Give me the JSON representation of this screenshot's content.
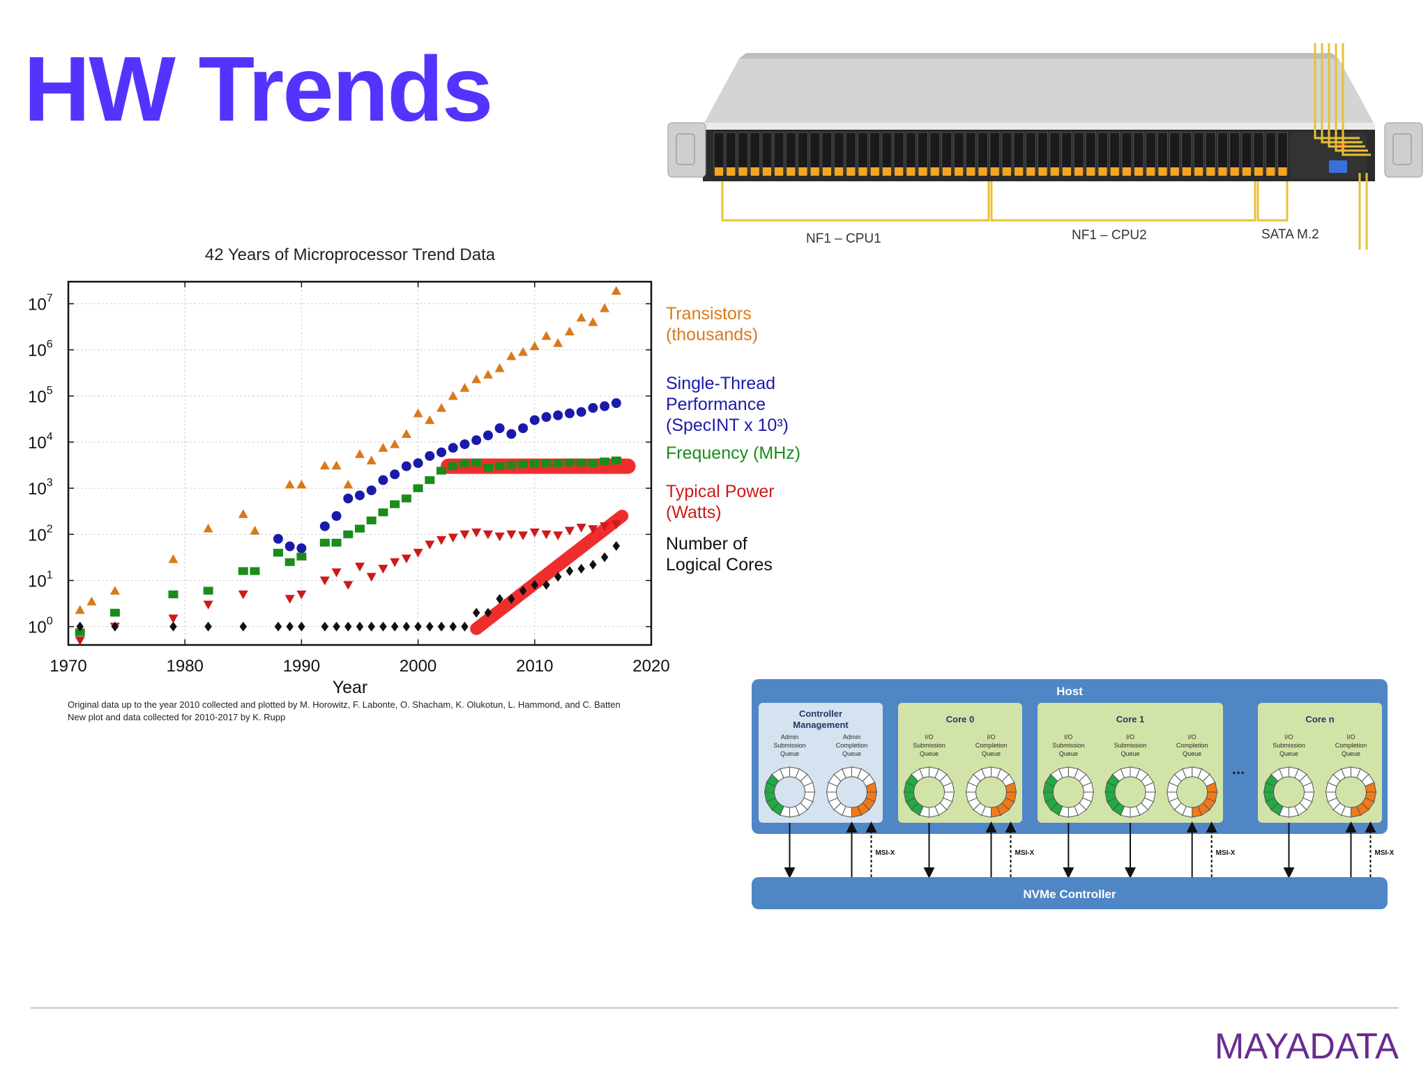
{
  "slide": {
    "title": "HW Trends",
    "title_color": "#5533ff"
  },
  "server": {
    "labels": [
      "NF1 – CPU1",
      "NF1 – CPU2",
      "SATA M.2"
    ],
    "bracket_color": "#e8c135",
    "drive_latch_color": "#f5a623"
  },
  "chart_data": {
    "type": "scatter",
    "title": "42 Years of Microprocessor Trend Data",
    "xlabel": "Year",
    "ylabel": "",
    "xlim": [
      1970,
      2020
    ],
    "ylim": [
      0.4,
      30000000
    ],
    "y_scale": "log",
    "grid": true,
    "x_ticks": [
      "1970",
      "1980",
      "1990",
      "2000",
      "2010",
      "2020"
    ],
    "y_ticks": [
      {
        "base": "10",
        "exp": "0"
      },
      {
        "base": "10",
        "exp": "1"
      },
      {
        "base": "10",
        "exp": "2"
      },
      {
        "base": "10",
        "exp": "3"
      },
      {
        "base": "10",
        "exp": "4"
      },
      {
        "base": "10",
        "exp": "5"
      },
      {
        "base": "10",
        "exp": "6"
      },
      {
        "base": "10",
        "exp": "7"
      }
    ],
    "legend": [
      {
        "lines": [
          "Transistors",
          "(thousands)"
        ],
        "color": "#d9791a"
      },
      {
        "lines": [
          "Single-Thread",
          "Performance",
          "(SpecINT x 10³)"
        ],
        "color": "#1a1aaa"
      },
      {
        "lines": [
          "Frequency (MHz)"
        ],
        "color": "#1a8c1a"
      },
      {
        "lines": [
          "Typical Power",
          "(Watts)"
        ],
        "color": "#cc1a1a"
      },
      {
        "lines": [
          "Number of",
          "Logical Cores"
        ],
        "color": "#111111"
      }
    ],
    "legend_placement": "right",
    "footnote": [
      "Original data up to the year 2010 collected and plotted by M. Horowitz, F. Labonte, O. Shacham, K. Olukotun, L. Hammond, and C. Batten",
      "New plot and data collected for 2010-2017 by K. Rupp"
    ],
    "series": [
      {
        "name": "Transistors (thousands)",
        "marker": "triangle-up",
        "color": "#d9791a",
        "points": [
          [
            1971,
            2.3
          ],
          [
            1972,
            3.5
          ],
          [
            1974,
            6
          ],
          [
            1979,
            29
          ],
          [
            1982,
            134
          ],
          [
            1985,
            275
          ],
          [
            1986,
            120
          ],
          [
            1989,
            1200
          ],
          [
            1990,
            1200
          ],
          [
            1992,
            3100
          ],
          [
            1993,
            3100
          ],
          [
            1994,
            1200
          ],
          [
            1995,
            5500
          ],
          [
            1996,
            4000
          ],
          [
            1997,
            7500
          ],
          [
            1998,
            9000
          ],
          [
            1999,
            15000
          ],
          [
            2000,
            42000
          ],
          [
            2001,
            30000
          ],
          [
            2002,
            55000
          ],
          [
            2003,
            100000
          ],
          [
            2004,
            150000
          ],
          [
            2005,
            230000
          ],
          [
            2006,
            290000
          ],
          [
            2007,
            400000
          ],
          [
            2008,
            730000
          ],
          [
            2009,
            900000
          ],
          [
            2010,
            1200000
          ],
          [
            2011,
            2000000
          ],
          [
            2012,
            1400000
          ],
          [
            2013,
            2500000
          ],
          [
            2014,
            5000000
          ],
          [
            2015,
            4000000
          ],
          [
            2016,
            8000000
          ],
          [
            2017,
            19000000
          ]
        ]
      },
      {
        "name": "Single-Thread Performance (SpecINT x 10³)",
        "marker": "circle",
        "color": "#1a1aaa",
        "points": [
          [
            1988,
            80
          ],
          [
            1989,
            55
          ],
          [
            1990,
            50
          ],
          [
            1992,
            150
          ],
          [
            1993,
            250
          ],
          [
            1994,
            600
          ],
          [
            1995,
            700
          ],
          [
            1996,
            900
          ],
          [
            1997,
            1500
          ],
          [
            1998,
            2000
          ],
          [
            1999,
            3000
          ],
          [
            2000,
            3500
          ],
          [
            2001,
            5000
          ],
          [
            2002,
            6000
          ],
          [
            2003,
            7500
          ],
          [
            2004,
            9000
          ],
          [
            2005,
            11000
          ],
          [
            2006,
            14000
          ],
          [
            2007,
            20000
          ],
          [
            2008,
            15000
          ],
          [
            2009,
            20000
          ],
          [
            2010,
            30000
          ],
          [
            2011,
            35000
          ],
          [
            2012,
            38000
          ],
          [
            2013,
            42000
          ],
          [
            2014,
            45000
          ],
          [
            2015,
            55000
          ],
          [
            2016,
            60000
          ],
          [
            2017,
            70000
          ]
        ]
      },
      {
        "name": "Frequency (MHz)",
        "marker": "square",
        "color": "#1a8c1a",
        "points": [
          [
            1971,
            0.75
          ],
          [
            1974,
            2
          ],
          [
            1979,
            5
          ],
          [
            1982,
            6
          ],
          [
            1985,
            16
          ],
          [
            1986,
            16
          ],
          [
            1988,
            40
          ],
          [
            1989,
            25
          ],
          [
            1990,
            33
          ],
          [
            1992,
            66
          ],
          [
            1993,
            66
          ],
          [
            1994,
            100
          ],
          [
            1995,
            133
          ],
          [
            1996,
            200
          ],
          [
            1997,
            300
          ],
          [
            1998,
            450
          ],
          [
            1999,
            600
          ],
          [
            2000,
            1000
          ],
          [
            2001,
            1500
          ],
          [
            2002,
            2400
          ],
          [
            2003,
            3000
          ],
          [
            2004,
            3400
          ],
          [
            2005,
            3600
          ],
          [
            2006,
            2800
          ],
          [
            2007,
            3000
          ],
          [
            2008,
            3200
          ],
          [
            2009,
            3300
          ],
          [
            2010,
            3400
          ],
          [
            2011,
            3500
          ],
          [
            2012,
            3500
          ],
          [
            2013,
            3600
          ],
          [
            2014,
            3600
          ],
          [
            2015,
            3500
          ],
          [
            2016,
            3800
          ],
          [
            2017,
            4000
          ]
        ]
      },
      {
        "name": "Typical Power (Watts)",
        "marker": "triangle-down",
        "color": "#cc1a1a",
        "points": [
          [
            1971,
            0.5
          ],
          [
            1974,
            1
          ],
          [
            1979,
            1.5
          ],
          [
            1982,
            3
          ],
          [
            1985,
            5
          ],
          [
            1989,
            4
          ],
          [
            1990,
            5
          ],
          [
            1992,
            10
          ],
          [
            1993,
            15
          ],
          [
            1994,
            8
          ],
          [
            1995,
            20
          ],
          [
            1996,
            12
          ],
          [
            1997,
            18
          ],
          [
            1998,
            25
          ],
          [
            1999,
            30
          ],
          [
            2000,
            40
          ],
          [
            2001,
            60
          ],
          [
            2002,
            75
          ],
          [
            2003,
            85
          ],
          [
            2004,
            100
          ],
          [
            2005,
            110
          ],
          [
            2006,
            100
          ],
          [
            2007,
            90
          ],
          [
            2008,
            100
          ],
          [
            2009,
            95
          ],
          [
            2010,
            110
          ],
          [
            2011,
            100
          ],
          [
            2012,
            95
          ],
          [
            2013,
            120
          ],
          [
            2014,
            140
          ],
          [
            2015,
            130
          ],
          [
            2016,
            150
          ],
          [
            2017,
            165
          ]
        ]
      },
      {
        "name": "Number of Logical Cores",
        "marker": "diamond",
        "color": "#111111",
        "points": [
          [
            1971,
            1
          ],
          [
            1974,
            1
          ],
          [
            1979,
            1
          ],
          [
            1982,
            1
          ],
          [
            1985,
            1
          ],
          [
            1988,
            1
          ],
          [
            1989,
            1
          ],
          [
            1990,
            1
          ],
          [
            1992,
            1
          ],
          [
            1993,
            1
          ],
          [
            1994,
            1
          ],
          [
            1995,
            1
          ],
          [
            1996,
            1
          ],
          [
            1997,
            1
          ],
          [
            1998,
            1
          ],
          [
            1999,
            1
          ],
          [
            2000,
            1
          ],
          [
            2001,
            1
          ],
          [
            2002,
            1
          ],
          [
            2003,
            1
          ],
          [
            2004,
            1
          ],
          [
            2005,
            2
          ],
          [
            2006,
            2
          ],
          [
            2007,
            4
          ],
          [
            2008,
            4
          ],
          [
            2009,
            6
          ],
          [
            2010,
            8
          ],
          [
            2011,
            8
          ],
          [
            2012,
            12
          ],
          [
            2013,
            16
          ],
          [
            2014,
            18
          ],
          [
            2015,
            22
          ],
          [
            2016,
            32
          ],
          [
            2017,
            56
          ]
        ]
      }
    ],
    "annotation_color": "#ee1c1c"
  },
  "nvme_diagram": {
    "host_label": "Host",
    "controller_label": "NVMe Controller",
    "groups": [
      {
        "title": "Controller Management",
        "rings": [
          {
            "label": [
              "Admin",
              "Submission",
              "Queue"
            ],
            "color": "#22aa44"
          },
          {
            "label": [
              "Admin",
              "Completion",
              "Queue"
            ],
            "color": "#f07a1a"
          }
        ]
      },
      {
        "title": "Core 0",
        "rings": [
          {
            "label": [
              "I/O",
              "Submission",
              "Queue"
            ],
            "color": "#22aa44"
          },
          {
            "label": [
              "I/O",
              "Completion",
              "Queue"
            ],
            "color": "#f07a1a"
          }
        ]
      },
      {
        "title": "Core 1",
        "rings": [
          {
            "label": [
              "I/O",
              "Submission",
              "Queue"
            ],
            "color": "#22aa44"
          },
          {
            "label": [
              "I/O",
              "Submission",
              "Queue"
            ],
            "color": "#22aa44"
          },
          {
            "label": [
              "I/O",
              "Completion",
              "Queue"
            ],
            "color": "#f07a1a"
          }
        ]
      },
      {
        "title": "Core n",
        "rings": [
          {
            "label": [
              "I/O",
              "Submission",
              "Queue"
            ],
            "color": "#22aa44"
          },
          {
            "label": [
              "I/O",
              "Completion",
              "Queue"
            ],
            "color": "#f07a1a"
          }
        ]
      }
    ],
    "ellipsis": "...",
    "msi_label": "MSI-X",
    "host_color": "#4f86c6",
    "group_color": "#d2e3a8",
    "mgmt_color": "#d5e2ef"
  },
  "logo": {
    "text": "MAYADATA",
    "color": "#6a2c8f"
  }
}
